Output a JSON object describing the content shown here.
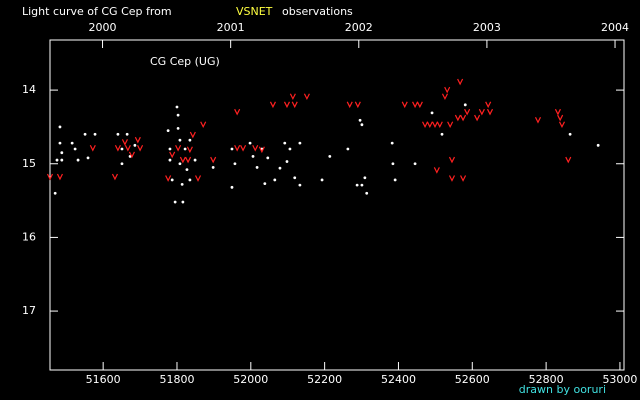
{
  "chart_data": {
    "type": "scatter",
    "title": "Light curve of CG Cep from",
    "title_highlight": "VSNET",
    "title_suffix": "observations",
    "annotation": "CG Cep (UG)",
    "credit": "drawn by ooruri",
    "xlim": [
      51456,
      53011
    ],
    "xticks": [
      51600,
      51800,
      52000,
      52200,
      52400,
      52600,
      52800,
      53000
    ],
    "x2lim": [
      1999.59,
      2004.07
    ],
    "x2ticks": [
      2000,
      2001,
      2002,
      2003,
      2004
    ],
    "ylim": [
      17.8,
      13.32
    ],
    "yticks": [
      14,
      15,
      16,
      17
    ],
    "series": [
      {
        "color": "#ffffff",
        "marker": "dot",
        "x": [
          51470,
          51475,
          51483,
          51483,
          51488,
          51488,
          51516,
          51524,
          51532,
          51551,
          51559,
          51578,
          51640,
          51651,
          51651,
          51665,
          51673,
          51686,
          51776,
          51781,
          51781,
          51787,
          51795,
          51800,
          51803,
          51803,
          51808,
          51808,
          51814,
          51816,
          51822,
          51827,
          51835,
          51835,
          51849,
          51898,
          51949,
          51949,
          51957,
          51998,
          52006,
          52017,
          52030,
          52038,
          52046,
          52065,
          52079,
          52092,
          52098,
          52106,
          52119,
          52133,
          52133,
          52193,
          52214,
          52263,
          52296,
          52288,
          52301,
          52301,
          52309,
          52314,
          52383,
          52385,
          52391,
          52445,
          52491,
          52518,
          52581,
          52865,
          52941
        ],
        "values": [
          15.4,
          14.95,
          14.5,
          14.72,
          14.85,
          14.95,
          14.72,
          14.8,
          14.95,
          14.6,
          14.92,
          14.6,
          14.6,
          14.8,
          15.0,
          14.6,
          14.9,
          14.75,
          14.55,
          14.8,
          14.95,
          15.22,
          15.52,
          14.23,
          14.34,
          14.52,
          14.68,
          15.0,
          15.28,
          15.52,
          14.8,
          15.08,
          14.68,
          15.22,
          14.95,
          15.05,
          14.8,
          15.32,
          15.0,
          14.72,
          14.9,
          15.05,
          14.8,
          15.27,
          14.92,
          15.22,
          15.06,
          14.72,
          14.97,
          14.8,
          15.19,
          14.72,
          15.29,
          15.22,
          14.9,
          14.8,
          14.41,
          15.29,
          14.47,
          15.29,
          15.19,
          15.4,
          14.72,
          15.0,
          15.22,
          15.0,
          14.31,
          14.6,
          14.2,
          14.6,
          14.75
        ]
      },
      {
        "color": "#ff2020",
        "marker": "v",
        "x": [
          51456,
          51483,
          51572,
          51632,
          51640,
          51659,
          51667,
          51678,
          51694,
          51700,
          51776,
          51787,
          51803,
          51816,
          51830,
          51835,
          51843,
          51857,
          51871,
          51898,
          51963,
          51963,
          51979,
          52012,
          52030,
          52060,
          52098,
          52114,
          52119,
          52152,
          52268,
          52290,
          52417,
          52445,
          52458,
          52472,
          52485,
          52499,
          52512,
          52532,
          52540,
          52504,
          52545,
          52561,
          52575,
          52545,
          52567,
          52586,
          52613,
          52626,
          52643,
          52648,
          52778,
          52832,
          52838,
          52843,
          52860,
          52575,
          52526
        ],
        "values": [
          15.18,
          15.18,
          14.79,
          15.18,
          14.79,
          14.71,
          14.79,
          14.88,
          14.68,
          14.79,
          15.2,
          14.88,
          14.79,
          14.95,
          14.95,
          14.81,
          14.61,
          15.2,
          14.47,
          14.95,
          14.3,
          14.79,
          14.79,
          14.79,
          14.81,
          14.2,
          14.2,
          14.09,
          14.2,
          14.09,
          14.2,
          14.2,
          14.2,
          14.2,
          14.2,
          14.47,
          14.47,
          14.47,
          14.47,
          14.0,
          14.47,
          15.09,
          14.95,
          14.38,
          14.38,
          15.2,
          13.89,
          14.3,
          14.38,
          14.3,
          14.2,
          14.3,
          14.41,
          14.3,
          14.38,
          14.47,
          14.95,
          15.2,
          14.09
        ]
      }
    ]
  }
}
